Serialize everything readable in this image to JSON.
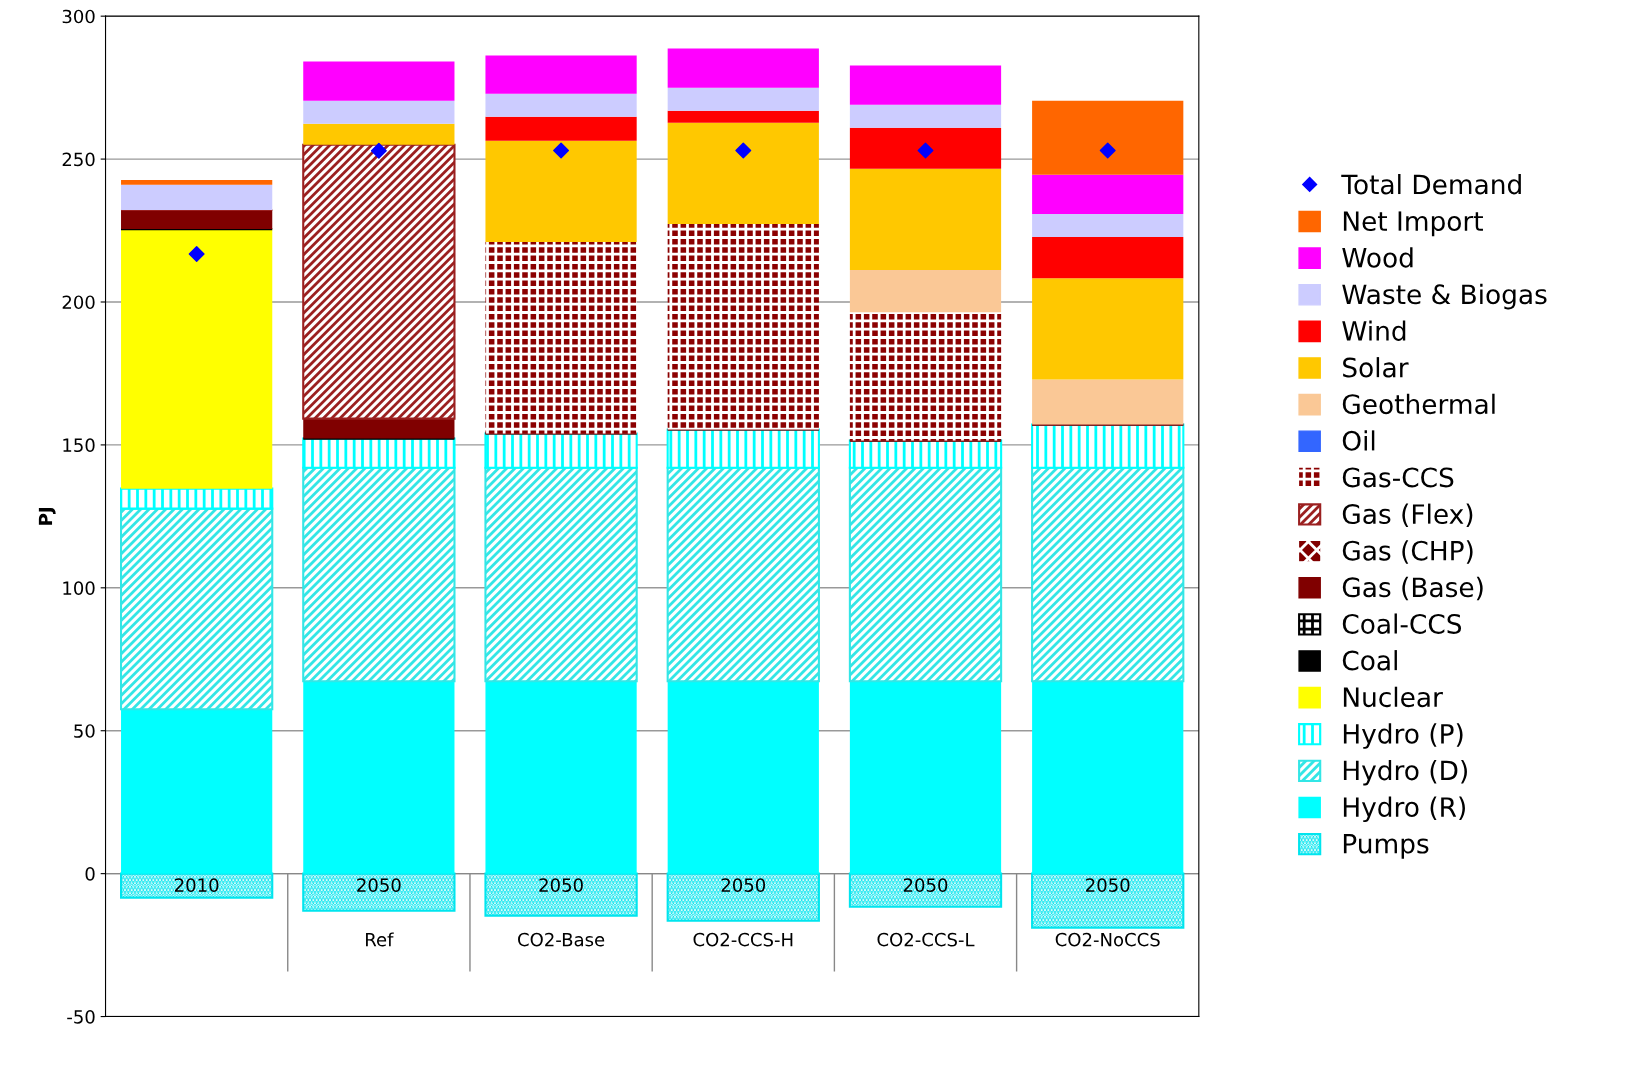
{
  "chart_data": {
    "type": "bar",
    "stacked": true,
    "ylabel": "PJ",
    "categories": [
      "2010",
      "2050\nRef",
      "2050\nCO2-Base",
      "2050\nCO2-CCS-H",
      "2050\nCO2-CCS-L",
      "2050\nCO2-NoCCS"
    ],
    "ylim": [
      -50,
      300
    ],
    "yticks": [
      -50,
      0,
      50,
      100,
      150,
      200,
      250,
      300
    ],
    "grid": "y",
    "legend": "right",
    "series": [
      {
        "name": "Pumps",
        "color": "#00e5ee",
        "values": [
          -8.4,
          -13,
          -14.7,
          -16.5,
          -11.6,
          -18.9
        ]
      },
      {
        "name": "Hydro (R)",
        "color": "#00ffff",
        "values": [
          57.5,
          67.3,
          67.3,
          67.3,
          67.3,
          67.3
        ]
      },
      {
        "name": "Hydro (D)",
        "color": "#33e6e6",
        "values": [
          70.2,
          74.7,
          74.7,
          74.7,
          74.7,
          74.7
        ]
      },
      {
        "name": "Hydro (P)",
        "color": "#00ffff",
        "values": [
          7,
          10.2,
          12,
          13.4,
          9.5,
          15.1
        ]
      },
      {
        "name": "Nuclear",
        "color": "#ffff00",
        "values": [
          90.8,
          0,
          0,
          0,
          0,
          0
        ]
      },
      {
        "name": "Coal",
        "color": "#000000",
        "values": [
          0,
          0,
          0,
          0,
          0,
          0
        ]
      },
      {
        "name": "Coal-CCS",
        "color": "#000000",
        "values": [
          0,
          0,
          0,
          0,
          0,
          0
        ]
      },
      {
        "name": "Gas (Base)",
        "color": "#800000",
        "values": [
          6.7,
          7,
          0,
          0,
          0,
          0
        ]
      },
      {
        "name": "Gas (CHP)",
        "color": "#800000",
        "values": [
          0,
          0,
          0,
          0,
          0,
          0
        ]
      },
      {
        "name": "Gas (Flex)",
        "color": "#9b2020",
        "values": [
          0,
          95.8,
          0,
          0,
          0,
          0
        ]
      },
      {
        "name": "Gas-CCS",
        "color": "#8b0000",
        "values": [
          0,
          0,
          67,
          71.9,
          44.9,
          0
        ]
      },
      {
        "name": "Oil",
        "color": "#3366ff",
        "values": [
          0,
          0,
          0,
          0,
          0,
          0
        ]
      },
      {
        "name": "Geothermal",
        "color": "#fac896",
        "values": [
          0,
          0,
          0,
          0,
          14.8,
          15.8
        ]
      },
      {
        "name": "Solar",
        "color": "#ffc800",
        "values": [
          0,
          7.4,
          35.4,
          35.4,
          35.4,
          35.4
        ]
      },
      {
        "name": "Wind",
        "color": "#ff0000",
        "values": [
          0,
          0,
          8.4,
          4.2,
          14.4,
          14.4
        ]
      },
      {
        "name": "Waste & Biogas",
        "color": "#ccccff",
        "values": [
          8.8,
          8,
          8.1,
          8.1,
          8,
          8.1
        ]
      },
      {
        "name": "Wood",
        "color": "#ff00ff",
        "values": [
          0,
          13.7,
          13.3,
          13.7,
          13.7,
          13.7
        ]
      },
      {
        "name": "Net Import",
        "color": "#ff6600",
        "values": [
          1.7,
          0,
          0,
          0,
          0,
          25.9
        ]
      },
      {
        "name": "Total Demand",
        "type": "scatter",
        "marker": "diamond",
        "color": "#0000ff",
        "values": [
          216.8,
          252.9,
          253,
          253,
          253,
          253
        ]
      }
    ]
  }
}
